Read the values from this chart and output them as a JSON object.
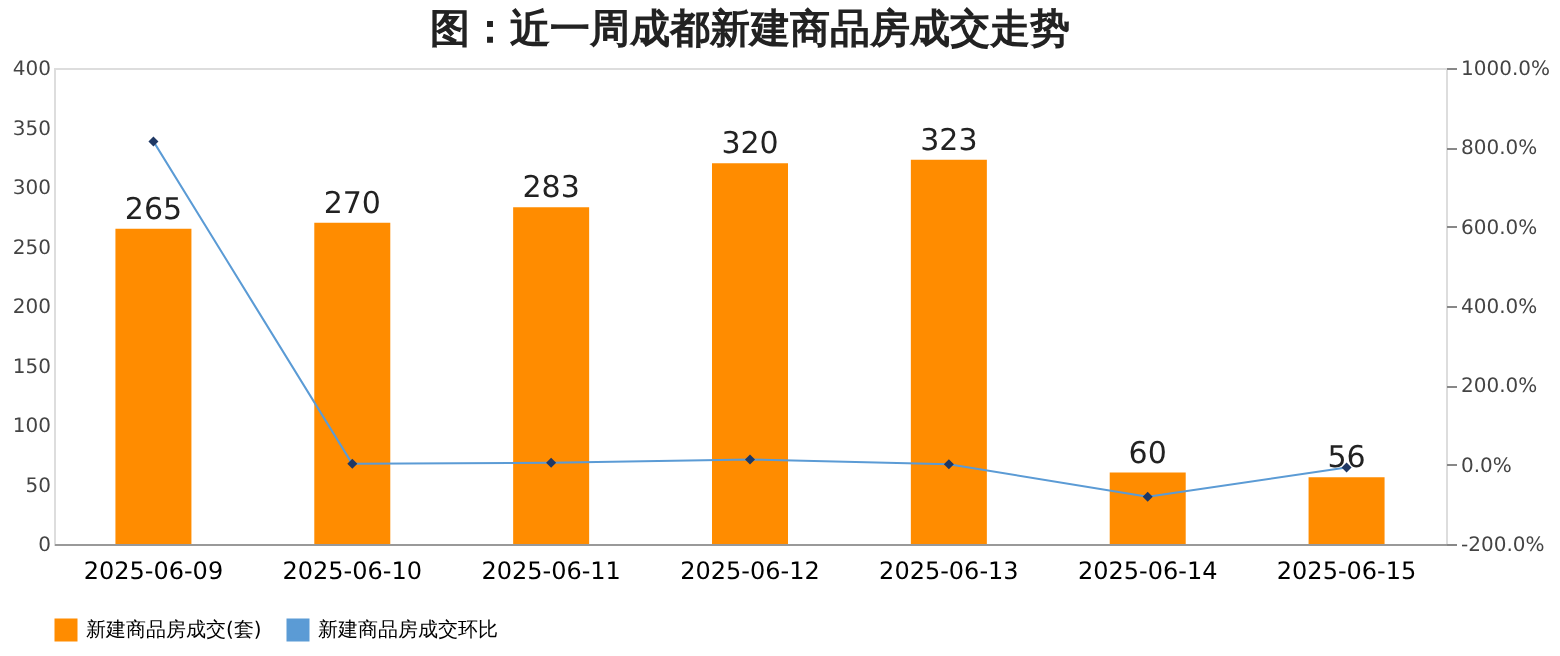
{
  "chart_data": {
    "type": "bar",
    "title": "图：近一周成都新建商品房成交走势",
    "categories": [
      "2025-06-09",
      "2025-06-10",
      "2025-06-11",
      "2025-06-12",
      "2025-06-13",
      "2025-06-14",
      "2025-06-15"
    ],
    "series": [
      {
        "name": "新建商品房成交(套)",
        "color": "#ff8c00",
        "values": [
          265,
          270,
          283,
          320,
          323,
          60,
          56
        ],
        "value_labels": [
          "265",
          "270",
          "283",
          "320",
          "323",
          "60",
          "56"
        ]
      },
      {
        "name": "新建商品房成交环比",
        "type": "line",
        "axis": "y2",
        "color": "#5b9bd5",
        "marker": "diamond",
        "values": [
          815,
          2,
          5,
          13,
          1,
          -81,
          -7
        ]
      }
    ],
    "ylim": [
      0,
      400
    ],
    "yticks": [
      0,
      50,
      100,
      150,
      200,
      250,
      300,
      350,
      400
    ],
    "y2lim": [
      -200,
      1000
    ],
    "y2ticks": [
      {
        "value": -200,
        "label": "-200.0%"
      },
      {
        "value": 0,
        "label": "0.0%"
      },
      {
        "value": 200,
        "label": "200.0%"
      },
      {
        "value": 400,
        "label": "400.0%"
      },
      {
        "value": 600,
        "label": "600.0%"
      },
      {
        "value": 800,
        "label": "800.0%"
      },
      {
        "value": 1000,
        "label": "1000.0%"
      }
    ],
    "grid": false,
    "legend": "bottom"
  }
}
